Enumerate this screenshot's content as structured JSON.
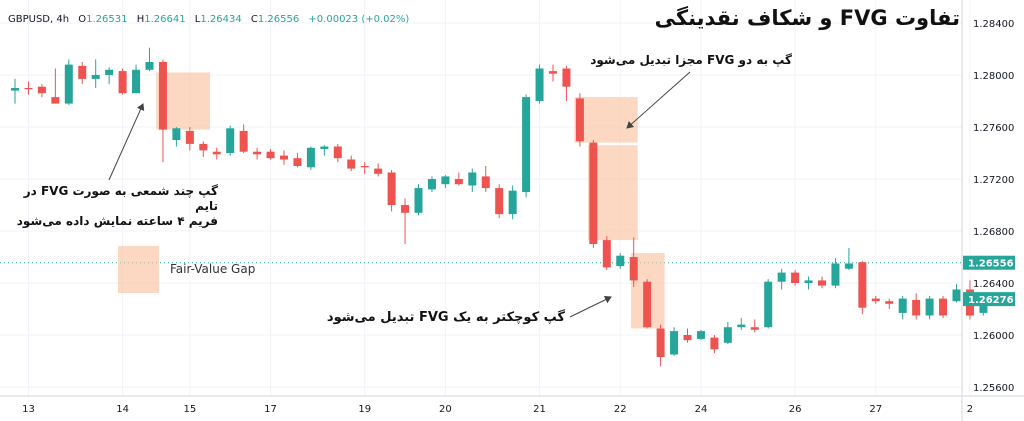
{
  "header": {
    "symbol": "GBPUSD, 4h",
    "open_label": "O",
    "open": "1.26531",
    "high_label": "H",
    "high": "1.26641",
    "low_label": "L",
    "low": "1.26434",
    "close_label": "C",
    "close": "1.26556",
    "change": "+0.00023 (+0.02%)"
  },
  "title": "تفاوت FVG و شکاف نقدینگی",
  "annotations": {
    "left_line1": "گپ چند شمعی به صورت FVG در تایم",
    "left_line2": "فریم ۴ ساعته نمایش داده می‌شود",
    "top_right": "گپ به دو FVG مجزا تبدیل می‌شود",
    "bottom": "گپ کوچکتر به یک FVG تبدیل می‌شود"
  },
  "legend": {
    "label": "Fair-Value Gap"
  },
  "colors": {
    "up": "#26a69a",
    "down": "#ef5350",
    "fvg": "rgba(250,190,155,0.6)",
    "price_tag": "#26a69a"
  },
  "chart_data": {
    "type": "candlestick",
    "title": "تفاوت FVG و شکاف نقدینگی",
    "ylim": [
      1.255,
      1.285
    ],
    "y_ticks": [
      "1.28400",
      "1.28000",
      "1.27600",
      "1.27200",
      "1.26800",
      "1.26400",
      "1.26000",
      "1.25600"
    ],
    "x_ticks": [
      {
        "label": "13",
        "index": 1
      },
      {
        "label": "14",
        "index": 8
      },
      {
        "label": "15",
        "index": 13
      },
      {
        "label": "17",
        "index": 19
      },
      {
        "label": "19",
        "index": 26
      },
      {
        "label": "20",
        "index": 32
      },
      {
        "label": "21",
        "index": 39
      },
      {
        "label": "22",
        "index": 45
      },
      {
        "label": "24",
        "index": 51
      },
      {
        "label": "26",
        "index": 58
      },
      {
        "label": "27",
        "index": 64
      },
      {
        "label": "2",
        "index": 71
      }
    ],
    "price_tags": [
      {
        "label": "1.26556",
        "value": 1.26556,
        "dotted_line": true
      },
      {
        "label": "1.26276",
        "value": 1.26276,
        "dotted_line": false
      }
    ],
    "candles": [
      {
        "o": 1.2788,
        "h": 1.2797,
        "l": 1.2778,
        "c": 1.279
      },
      {
        "o": 1.279,
        "h": 1.2795,
        "l": 1.2785,
        "c": 1.2789
      },
      {
        "o": 1.2791,
        "h": 1.2793,
        "l": 1.2783,
        "c": 1.2786
      },
      {
        "o": 1.2783,
        "h": 1.2805,
        "l": 1.2778,
        "c": 1.2778
      },
      {
        "o": 1.2778,
        "h": 1.2812,
        "l": 1.2777,
        "c": 1.2808
      },
      {
        "o": 1.2807,
        "h": 1.281,
        "l": 1.2793,
        "c": 1.2797
      },
      {
        "o": 1.2797,
        "h": 1.2812,
        "l": 1.279,
        "c": 1.28
      },
      {
        "o": 1.28,
        "h": 1.2806,
        "l": 1.2793,
        "c": 1.2804
      },
      {
        "o": 1.2803,
        "h": 1.2805,
        "l": 1.2785,
        "c": 1.2786
      },
      {
        "o": 1.2786,
        "h": 1.2808,
        "l": 1.2786,
        "c": 1.2804
      },
      {
        "o": 1.2804,
        "h": 1.2821,
        "l": 1.2803,
        "c": 1.281
      },
      {
        "o": 1.281,
        "h": 1.2812,
        "l": 1.2733,
        "c": 1.2758
      },
      {
        "o": 1.275,
        "h": 1.276,
        "l": 1.2745,
        "c": 1.2759
      },
      {
        "o": 1.2757,
        "h": 1.276,
        "l": 1.2742,
        "c": 1.2747
      },
      {
        "o": 1.2747,
        "h": 1.2749,
        "l": 1.2737,
        "c": 1.2742
      },
      {
        "o": 1.2741,
        "h": 1.2744,
        "l": 1.2735,
        "c": 1.2739
      },
      {
        "o": 1.274,
        "h": 1.2761,
        "l": 1.2738,
        "c": 1.2759
      },
      {
        "o": 1.2757,
        "h": 1.2762,
        "l": 1.274,
        "c": 1.2741
      },
      {
        "o": 1.2741,
        "h": 1.2744,
        "l": 1.2735,
        "c": 1.2739
      },
      {
        "o": 1.2741,
        "h": 1.2743,
        "l": 1.2735,
        "c": 1.2736
      },
      {
        "o": 1.2738,
        "h": 1.2742,
        "l": 1.2731,
        "c": 1.2735
      },
      {
        "o": 1.2736,
        "h": 1.274,
        "l": 1.2729,
        "c": 1.273
      },
      {
        "o": 1.2729,
        "h": 1.2745,
        "l": 1.2727,
        "c": 1.2744
      },
      {
        "o": 1.2743,
        "h": 1.2746,
        "l": 1.2738,
        "c": 1.2745
      },
      {
        "o": 1.2745,
        "h": 1.2747,
        "l": 1.2733,
        "c": 1.2736
      },
      {
        "o": 1.2735,
        "h": 1.2738,
        "l": 1.2726,
        "c": 1.2728
      },
      {
        "o": 1.273,
        "h": 1.2733,
        "l": 1.2724,
        "c": 1.2729
      },
      {
        "o": 1.2728,
        "h": 1.2732,
        "l": 1.2722,
        "c": 1.2724
      },
      {
        "o": 1.2725,
        "h": 1.2727,
        "l": 1.2695,
        "c": 1.27
      },
      {
        "o": 1.27,
        "h": 1.2705,
        "l": 1.267,
        "c": 1.2694
      },
      {
        "o": 1.2694,
        "h": 1.2716,
        "l": 1.2692,
        "c": 1.2713
      },
      {
        "o": 1.2712,
        "h": 1.2722,
        "l": 1.271,
        "c": 1.272
      },
      {
        "o": 1.2716,
        "h": 1.2723,
        "l": 1.2713,
        "c": 1.2722
      },
      {
        "o": 1.272,
        "h": 1.2725,
        "l": 1.2715,
        "c": 1.2716
      },
      {
        "o": 1.2715,
        "h": 1.2728,
        "l": 1.271,
        "c": 1.2725
      },
      {
        "o": 1.2722,
        "h": 1.273,
        "l": 1.271,
        "c": 1.2713
      },
      {
        "o": 1.2713,
        "h": 1.2716,
        "l": 1.269,
        "c": 1.2693
      },
      {
        "o": 1.2693,
        "h": 1.2715,
        "l": 1.2689,
        "c": 1.2711
      },
      {
        "o": 1.271,
        "h": 1.2785,
        "l": 1.2706,
        "c": 1.2783
      },
      {
        "o": 1.278,
        "h": 1.2808,
        "l": 1.2778,
        "c": 1.2805
      },
      {
        "o": 1.2803,
        "h": 1.2808,
        "l": 1.2795,
        "c": 1.2801
      },
      {
        "o": 1.2805,
        "h": 1.2807,
        "l": 1.278,
        "c": 1.2791
      },
      {
        "o": 1.2782,
        "h": 1.2786,
        "l": 1.2745,
        "c": 1.2749
      },
      {
        "o": 1.2748,
        "h": 1.275,
        "l": 1.2667,
        "c": 1.267
      },
      {
        "o": 1.2673,
        "h": 1.2676,
        "l": 1.265,
        "c": 1.2652
      },
      {
        "o": 1.2653,
        "h": 1.2663,
        "l": 1.2651,
        "c": 1.2661
      },
      {
        "o": 1.266,
        "h": 1.2675,
        "l": 1.2637,
        "c": 1.2642
      },
      {
        "o": 1.2641,
        "h": 1.2643,
        "l": 1.2605,
        "c": 1.2606
      },
      {
        "o": 1.2605,
        "h": 1.2608,
        "l": 1.2576,
        "c": 1.2583
      },
      {
        "o": 1.2585,
        "h": 1.2606,
        "l": 1.2584,
        "c": 1.2603
      },
      {
        "o": 1.26,
        "h": 1.2605,
        "l": 1.2594,
        "c": 1.2596
      },
      {
        "o": 1.2597,
        "h": 1.2604,
        "l": 1.2596,
        "c": 1.2603
      },
      {
        "o": 1.2598,
        "h": 1.26,
        "l": 1.2586,
        "c": 1.2589
      },
      {
        "o": 1.2594,
        "h": 1.261,
        "l": 1.2593,
        "c": 1.2606
      },
      {
        "o": 1.2606,
        "h": 1.2613,
        "l": 1.2604,
        "c": 1.2608
      },
      {
        "o": 1.2606,
        "h": 1.2612,
        "l": 1.2602,
        "c": 1.2604
      },
      {
        "o": 1.2606,
        "h": 1.2643,
        "l": 1.2605,
        "c": 1.2641
      },
      {
        "o": 1.2641,
        "h": 1.2651,
        "l": 1.2635,
        "c": 1.2648
      },
      {
        "o": 1.2648,
        "h": 1.265,
        "l": 1.2638,
        "c": 1.264
      },
      {
        "o": 1.264,
        "h": 1.2645,
        "l": 1.2635,
        "c": 1.2642
      },
      {
        "o": 1.2642,
        "h": 1.2645,
        "l": 1.2636,
        "c": 1.2638
      },
      {
        "o": 1.2638,
        "h": 1.2659,
        "l": 1.2636,
        "c": 1.2655
      },
      {
        "o": 1.2651,
        "h": 1.2667,
        "l": 1.265,
        "c": 1.2655
      },
      {
        "o": 1.2656,
        "h": 1.2657,
        "l": 1.2616,
        "c": 1.2621
      },
      {
        "o": 1.2628,
        "h": 1.263,
        "l": 1.2624,
        "c": 1.2626
      },
      {
        "o": 1.2626,
        "h": 1.2628,
        "l": 1.262,
        "c": 1.2624
      },
      {
        "o": 1.2617,
        "h": 1.263,
        "l": 1.2612,
        "c": 1.2628
      },
      {
        "o": 1.2627,
        "h": 1.2632,
        "l": 1.2612,
        "c": 1.2615
      },
      {
        "o": 1.2615,
        "h": 1.263,
        "l": 1.2612,
        "c": 1.2628
      },
      {
        "o": 1.2628,
        "h": 1.263,
        "l": 1.2613,
        "c": 1.2615
      },
      {
        "o": 1.2626,
        "h": 1.2639,
        "l": 1.2625,
        "c": 1.2635
      },
      {
        "o": 1.2635,
        "h": 1.2642,
        "l": 1.2612,
        "c": 1.2615
      },
      {
        "o": 1.2617,
        "h": 1.263,
        "l": 1.2615,
        "c": 1.2628
      }
    ],
    "fvg_zones": [
      {
        "name": "fvg-multi-candle",
        "from_index": 10.5,
        "to_index": 14.5,
        "low": 1.2758,
        "high": 1.2802
      },
      {
        "name": "fvg-upper",
        "from_index": 41.6,
        "to_index": 46.3,
        "low": 1.2748,
        "high": 1.2783
      },
      {
        "name": "fvg-lower",
        "from_index": 42.6,
        "to_index": 46.3,
        "low": 1.2673,
        "high": 1.2746
      },
      {
        "name": "fvg-small",
        "from_index": 45.8,
        "to_index": 48.3,
        "low": 1.2605,
        "high": 1.2663
      }
    ]
  }
}
